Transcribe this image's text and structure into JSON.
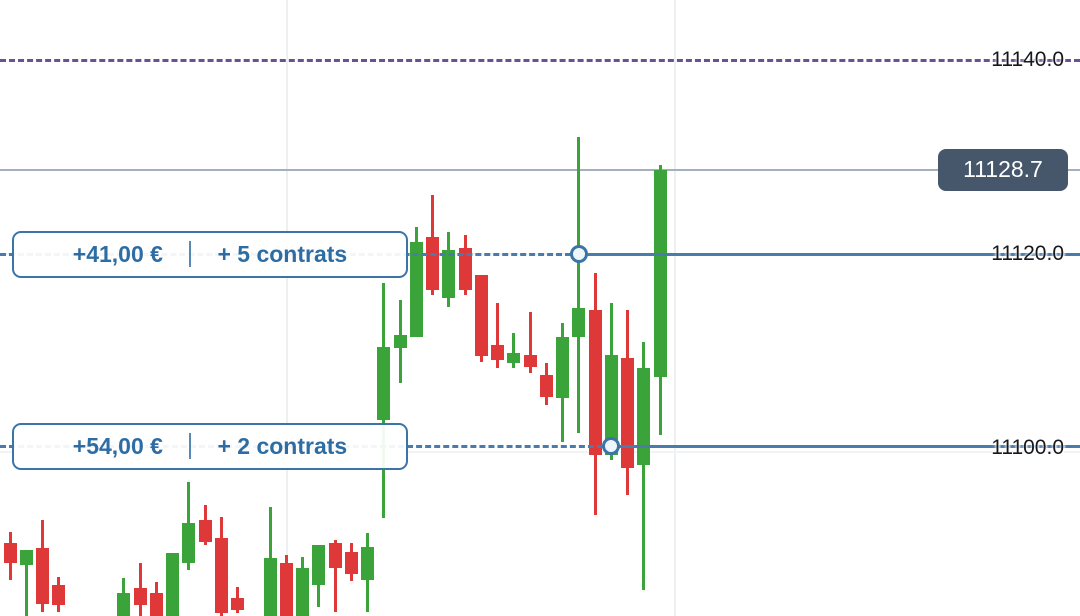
{
  "chart_data": {
    "type": "candlestick",
    "title": "",
    "instrument_hint": "index CFD around 11100",
    "up_color": "#3aa33a",
    "down_color": "#df3838",
    "grid_on": true,
    "time_gridlines_x": [
      287,
      675
    ],
    "price_axis": {
      "side": "right",
      "labels": [
        {
          "text": "11140.0",
          "price": 11140.0
        },
        {
          "text": "11120.0",
          "price": 11120.0
        },
        {
          "text": "11100.0",
          "price": 11100.0
        }
      ],
      "approx_visible_range": [
        11082.0,
        11146.0
      ]
    },
    "alert_line": {
      "price": 11140.0,
      "style": "dashed",
      "color": "#6b5092"
    },
    "current_price": {
      "value": "11128.7",
      "price": 11128.7,
      "line_color": "#a6b0bc",
      "badge_bg": "#46566b",
      "badge_text_color": "#ffffff"
    },
    "positions": [
      {
        "pnl": "+41,00 €",
        "contracts": "+ 5 contrats",
        "entry_price": 11120.0,
        "marker_x_index": 35,
        "line_color": "#4a7cab"
      },
      {
        "pnl": "+54,00 €",
        "contracts": "+ 2 contrats",
        "entry_price": 11100.2,
        "marker_x_index": 37,
        "line_color": "#4a7cab"
      }
    ],
    "candles": [
      {
        "i": 0,
        "o": 11090.2,
        "h": 11091.3,
        "l": 11086.4,
        "c": 11088.1
      },
      {
        "i": 1,
        "o": 11087.9,
        "h": 11089.5,
        "l": 11082.1,
        "c": 11089.5
      },
      {
        "i": 2,
        "o": 11089.7,
        "h": 11092.6,
        "l": 11083.1,
        "c": 11083.9
      },
      {
        "i": 3,
        "o": 11085.9,
        "h": 11086.7,
        "l": 11083.1,
        "c": 11083.8
      },
      {
        "i": 7,
        "o": 11082.1,
        "h": 11086.6,
        "l": 11082.1,
        "c": 11085.1
      },
      {
        "i": 8,
        "o": 11085.6,
        "h": 11088.1,
        "l": 11082.3,
        "c": 11083.8
      },
      {
        "i": 9,
        "o": 11085.1,
        "h": 11086.2,
        "l": 11082.1,
        "c": 11082.1
      },
      {
        "i": 10,
        "o": 11082.1,
        "h": 11089.2,
        "l": 11082.1,
        "c": 11089.2
      },
      {
        "i": 11,
        "o": 11088.1,
        "h": 11096.5,
        "l": 11087.4,
        "c": 11092.3
      },
      {
        "i": 12,
        "o": 11092.6,
        "h": 11094.1,
        "l": 11090.0,
        "c": 11090.3
      },
      {
        "i": 13,
        "o": 11090.7,
        "h": 11092.9,
        "l": 11082.7,
        "c": 11083.0
      },
      {
        "i": 14,
        "o": 11084.5,
        "h": 11085.7,
        "l": 11083.0,
        "c": 11083.3
      },
      {
        "i": 16,
        "o": 11082.1,
        "h": 11093.9,
        "l": 11082.1,
        "c": 11088.7
      },
      {
        "i": 17,
        "o": 11088.1,
        "h": 11089.0,
        "l": 11082.1,
        "c": 11082.1
      },
      {
        "i": 18,
        "o": 11082.1,
        "h": 11088.8,
        "l": 11082.1,
        "c": 11087.6
      },
      {
        "i": 19,
        "o": 11085.9,
        "h": 11090.0,
        "l": 11083.6,
        "c": 11090.0
      },
      {
        "i": 20,
        "o": 11090.2,
        "h": 11090.5,
        "l": 11083.1,
        "c": 11087.6
      },
      {
        "i": 21,
        "o": 11089.3,
        "h": 11090.2,
        "l": 11086.3,
        "c": 11087.0
      },
      {
        "i": 22,
        "o": 11086.4,
        "h": 11091.2,
        "l": 11083.1,
        "c": 11089.8
      },
      {
        "i": 23,
        "o": 11102.9,
        "h": 11117.0,
        "l": 11092.8,
        "c": 11110.4
      },
      {
        "i": 24,
        "o": 11110.3,
        "h": 11115.3,
        "l": 11106.7,
        "c": 11111.6
      },
      {
        "i": 25,
        "o": 11111.4,
        "h": 11122.8,
        "l": 11111.4,
        "c": 11121.2
      },
      {
        "i": 26,
        "o": 11121.8,
        "h": 11126.1,
        "l": 11115.8,
        "c": 11116.3
      },
      {
        "i": 27,
        "o": 11115.5,
        "h": 11122.3,
        "l": 11114.5,
        "c": 11120.4
      },
      {
        "i": 28,
        "o": 11120.6,
        "h": 11122.0,
        "l": 11115.8,
        "c": 11116.3
      },
      {
        "i": 29,
        "o": 11117.8,
        "h": 11117.8,
        "l": 11108.9,
        "c": 11109.5
      },
      {
        "i": 30,
        "o": 11110.6,
        "h": 11114.9,
        "l": 11108.2,
        "c": 11109.1
      },
      {
        "i": 31,
        "o": 11108.8,
        "h": 11111.9,
        "l": 11108.2,
        "c": 11109.8
      },
      {
        "i": 32,
        "o": 11109.6,
        "h": 11114.0,
        "l": 11107.7,
        "c": 11108.4
      },
      {
        "i": 33,
        "o": 11107.5,
        "h": 11108.8,
        "l": 11104.4,
        "c": 11105.3
      },
      {
        "i": 34,
        "o": 11105.2,
        "h": 11112.9,
        "l": 11100.6,
        "c": 11111.4
      },
      {
        "i": 35,
        "o": 11111.4,
        "h": 11132.1,
        "l": 11101.5,
        "c": 11114.4
      },
      {
        "i": 36,
        "o": 11114.2,
        "h": 11118.0,
        "l": 11093.1,
        "c": 11099.3
      },
      {
        "i": 37,
        "o": 11099.3,
        "h": 11114.9,
        "l": 11098.8,
        "c": 11109.6
      },
      {
        "i": 38,
        "o": 11109.3,
        "h": 11114.2,
        "l": 11095.2,
        "c": 11097.9
      },
      {
        "i": 39,
        "o": 11098.2,
        "h": 11110.9,
        "l": 11085.4,
        "c": 11108.2
      },
      {
        "i": 40,
        "o": 11107.3,
        "h": 11129.2,
        "l": 11101.3,
        "c": 11128.7
      }
    ]
  }
}
